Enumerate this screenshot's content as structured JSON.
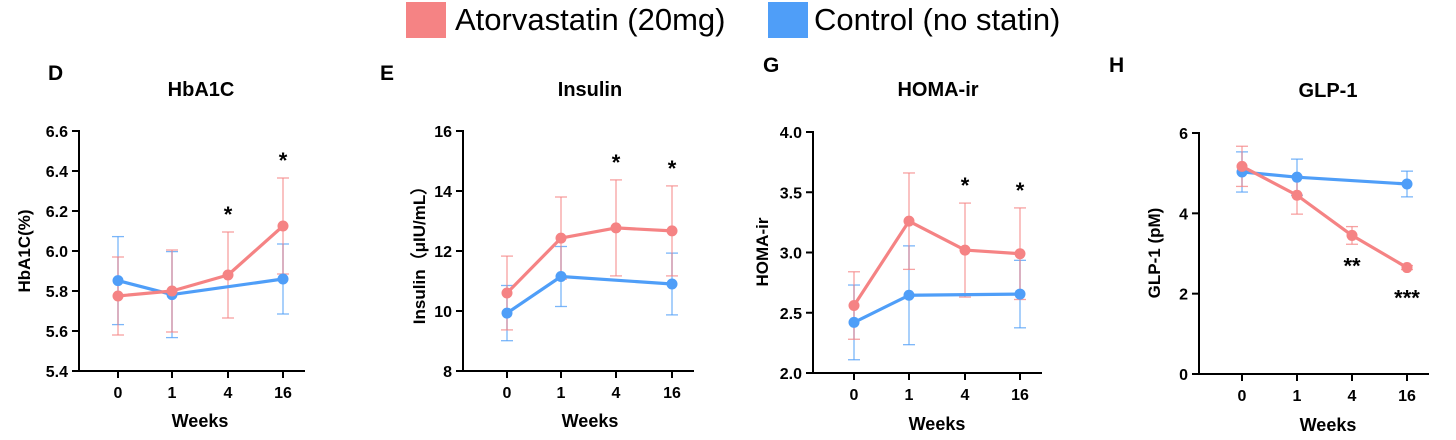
{
  "legend": {
    "items": [
      {
        "label": "Atorvastatin (20mg)",
        "color": "#f58384"
      },
      {
        "label": "Control (no statin)",
        "color": "#4f9ef8"
      }
    ]
  },
  "chart_data": [
    {
      "type": "line",
      "panel_letter": "D",
      "title": "HbA1C",
      "xlabel": "Weeks",
      "ylabel": "HbA1C(%)",
      "categories": [
        "0",
        "1",
        "4",
        "16"
      ],
      "ylim": [
        5.4,
        6.6
      ],
      "yticks": [
        5.4,
        5.6,
        5.8,
        6.0,
        6.2,
        6.4,
        6.6
      ],
      "ytick_labels": [
        "5.4",
        "5.6",
        "5.8",
        "6.0",
        "6.2",
        "6.4",
        "6.6"
      ],
      "series": [
        {
          "name": "Atorvastatin (20mg)",
          "color": "#f58384",
          "values": [
            5.775,
            5.8,
            5.88,
            6.125
          ],
          "errors": [
            0.195,
            0.205,
            0.215,
            0.24
          ]
        },
        {
          "name": "Control (no statin)",
          "color": "#4f9ef8",
          "values": [
            5.852,
            5.782,
            null,
            5.86
          ],
          "errors": [
            0.22,
            0.215,
            null,
            0.175
          ]
        }
      ],
      "annotations": [
        {
          "category": "4",
          "text": "*"
        },
        {
          "category": "16",
          "text": "*"
        }
      ]
    },
    {
      "type": "line",
      "panel_letter": "E",
      "title": "Insulin",
      "xlabel": "Weeks",
      "ylabel": "Insulin（μIU/mL）",
      "categories": [
        "0",
        "1",
        "4",
        "16"
      ],
      "ylim": [
        8,
        16
      ],
      "yticks": [
        8,
        10,
        12,
        14,
        16
      ],
      "ytick_labels": [
        "8",
        "10",
        "12",
        "14",
        "16"
      ],
      "series": [
        {
          "name": "Atorvastatin (20mg)",
          "color": "#f58384",
          "values": [
            10.6,
            12.43,
            12.77,
            12.67
          ],
          "errors": [
            1.23,
            1.37,
            1.6,
            1.5
          ]
        },
        {
          "name": "Control (no statin)",
          "color": "#4f9ef8",
          "values": [
            9.93,
            11.15,
            null,
            10.9
          ],
          "errors": [
            0.92,
            1.0,
            null,
            1.03
          ]
        }
      ],
      "annotations": [
        {
          "category": "4",
          "text": "*"
        },
        {
          "category": "16",
          "text": "*"
        }
      ]
    },
    {
      "type": "line",
      "panel_letter": "G",
      "title": "HOMA-ir",
      "xlabel": "Weeks",
      "ylabel": "HOMA-ir",
      "categories": [
        "0",
        "1",
        "4",
        "16"
      ],
      "ylim": [
        2.0,
        4.0
      ],
      "yticks": [
        2.0,
        2.5,
        3.0,
        3.5,
        4.0
      ],
      "ytick_labels": [
        "2.0",
        "2.5",
        "3.0",
        "3.5",
        "4.0"
      ],
      "series": [
        {
          "name": "Atorvastatin (20mg)",
          "color": "#f58384",
          "values": [
            2.56,
            3.26,
            3.02,
            2.99
          ],
          "errors": [
            0.28,
            0.4,
            0.39,
            0.38
          ]
        },
        {
          "name": "Control (no statin)",
          "color": "#4f9ef8",
          "values": [
            2.42,
            2.645,
            null,
            2.655
          ],
          "errors": [
            0.31,
            0.41,
            null,
            0.28
          ]
        }
      ],
      "annotations": [
        {
          "category": "4",
          "text": "*"
        },
        {
          "category": "16",
          "text": "*"
        }
      ]
    },
    {
      "type": "line",
      "panel_letter": "H",
      "title": "GLP-1",
      "xlabel": "Weeks",
      "ylabel": "GLP-1 (pM)",
      "categories": [
        "0",
        "1",
        "4",
        "16"
      ],
      "ylim": [
        0,
        6
      ],
      "yticks": [
        0,
        2,
        4,
        6
      ],
      "ytick_labels": [
        "0",
        "2",
        "4",
        "6"
      ],
      "series": [
        {
          "name": "Atorvastatin (20mg)",
          "color": "#f58384",
          "values": [
            5.17,
            4.45,
            3.45,
            2.65
          ],
          "errors": [
            0.5,
            0.47,
            0.22,
            0.05
          ]
        },
        {
          "name": "Control (no statin)",
          "color": "#4f9ef8",
          "values": [
            5.03,
            4.9,
            null,
            4.73
          ],
          "errors": [
            0.5,
            0.45,
            null,
            0.32
          ]
        }
      ],
      "annotations": [
        {
          "category": "4",
          "text": "**"
        },
        {
          "category": "16",
          "text": "***"
        }
      ]
    }
  ]
}
